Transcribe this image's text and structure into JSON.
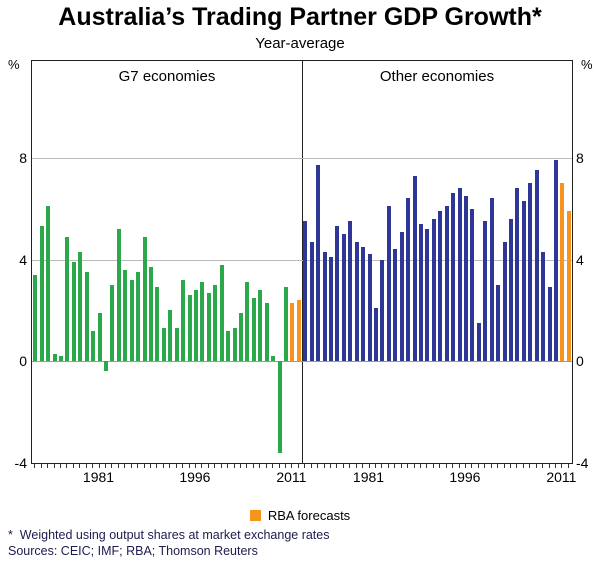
{
  "title": "Australia’s Trading Partner GDP Growth*",
  "subtitle": "Year-average",
  "legend": {
    "label": "RBA forecasts",
    "color": "#f6941d"
  },
  "footnotes": [
    "*  Weighted using output shares at market exchange rates",
    "Sources: CEIC; IMF; RBA; Thomson Reuters"
  ],
  "chart_data": {
    "type": "bar",
    "title": "Australia’s Trading Partner GDP Growth*",
    "subtitle": "Year-average",
    "unit": "%",
    "ylim": [
      -4,
      11.8
    ],
    "gridlines": [
      8,
      4,
      0
    ],
    "ytick_values": [
      8,
      4,
      0,
      -4
    ],
    "xtick_years": [
      1981,
      1996,
      2011
    ],
    "forecast_from": 2011,
    "legend_label": "RBA forecasts",
    "colors": {
      "forecast": "#f6941d",
      "g7": "#2aa84a",
      "other": "#2f3796",
      "gridline": "#bcbcbc"
    },
    "panels": [
      {
        "label": "G7 economies",
        "color": "#2aa84a",
        "years": [
          1971,
          1972,
          1973,
          1974,
          1975,
          1976,
          1977,
          1978,
          1979,
          1980,
          1981,
          1982,
          1983,
          1984,
          1985,
          1986,
          1987,
          1988,
          1989,
          1990,
          1991,
          1992,
          1993,
          1994,
          1995,
          1996,
          1997,
          1998,
          1999,
          2000,
          2001,
          2002,
          2003,
          2004,
          2005,
          2006,
          2007,
          2008,
          2009,
          2010,
          2011,
          2012
        ],
        "values": [
          3.4,
          5.3,
          6.1,
          0.3,
          0.2,
          4.9,
          3.9,
          4.3,
          3.5,
          1.2,
          1.9,
          -0.4,
          3.0,
          5.2,
          3.6,
          3.2,
          3.5,
          4.9,
          3.7,
          2.9,
          1.3,
          2.0,
          1.3,
          3.2,
          2.6,
          2.8,
          3.1,
          2.7,
          3.0,
          3.8,
          1.2,
          1.3,
          1.9,
          3.1,
          2.5,
          2.8,
          2.3,
          0.2,
          -3.6,
          2.9,
          2.3,
          2.4
        ]
      },
      {
        "label": "Other economies",
        "color": "#2f3796",
        "years": [
          1971,
          1972,
          1973,
          1974,
          1975,
          1976,
          1977,
          1978,
          1979,
          1980,
          1981,
          1982,
          1983,
          1984,
          1985,
          1986,
          1987,
          1988,
          1989,
          1990,
          1991,
          1992,
          1993,
          1994,
          1995,
          1996,
          1997,
          1998,
          1999,
          2000,
          2001,
          2002,
          2003,
          2004,
          2005,
          2006,
          2007,
          2008,
          2009,
          2010,
          2011,
          2012
        ],
        "values": [
          5.5,
          4.7,
          7.7,
          4.3,
          4.1,
          5.3,
          5.0,
          5.5,
          4.7,
          4.5,
          4.2,
          2.1,
          4.0,
          6.1,
          4.4,
          5.1,
          6.4,
          7.3,
          5.4,
          5.2,
          5.6,
          5.9,
          6.1,
          6.6,
          6.8,
          6.5,
          6.0,
          1.5,
          5.5,
          6.4,
          3.0,
          4.7,
          5.6,
          6.8,
          6.3,
          7.0,
          7.5,
          4.3,
          2.9,
          7.9,
          7.0,
          5.9
        ]
      }
    ]
  }
}
